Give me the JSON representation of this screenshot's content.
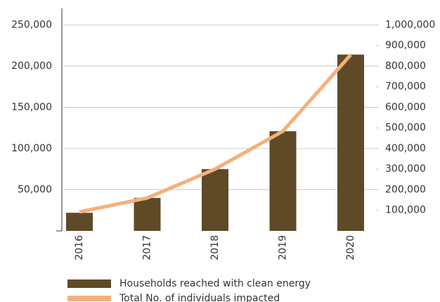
{
  "chart_data": {
    "type": "bar",
    "categories": [
      "2016",
      "2017",
      "2018",
      "2019",
      "2020"
    ],
    "series": [
      {
        "name": "Households reached with clean energy",
        "color": "#5e4a26",
        "type": "bar",
        "values": [
          22000,
          40000,
          75000,
          121000,
          214000
        ]
      },
      {
        "name": "Total No. of individuals impacted",
        "color": "#f4b07c",
        "type": "line",
        "axis": "y2",
        "values": [
          92000,
          160000,
          300000,
          484000,
          855000
        ]
      }
    ],
    "ylim": [
      0,
      270000
    ],
    "yticks": [
      {
        "value": 50000,
        "label": "50,000"
      },
      {
        "value": 100000,
        "label": "100,000"
      },
      {
        "value": 150000,
        "label": "150,000"
      },
      {
        "value": 200000,
        "label": "200,000"
      },
      {
        "value": 250000,
        "label": "250,000"
      }
    ],
    "y2lim": [
      0,
      1080000
    ],
    "y2ticks": [
      {
        "value": 100000,
        "label": "100,000"
      },
      {
        "value": 200000,
        "label": "200,000"
      },
      {
        "value": 300000,
        "label": "300,000"
      },
      {
        "value": 400000,
        "label": "400,000"
      },
      {
        "value": 500000,
        "label": "500,000"
      },
      {
        "value": 600000,
        "label": "600,000"
      },
      {
        "value": 700000,
        "label": "700,000"
      },
      {
        "value": 800000,
        "label": "800,000"
      },
      {
        "value": 900000,
        "label": "900,000"
      },
      {
        "value": 1000000,
        "label": "1,000,000"
      }
    ],
    "grid": true
  }
}
